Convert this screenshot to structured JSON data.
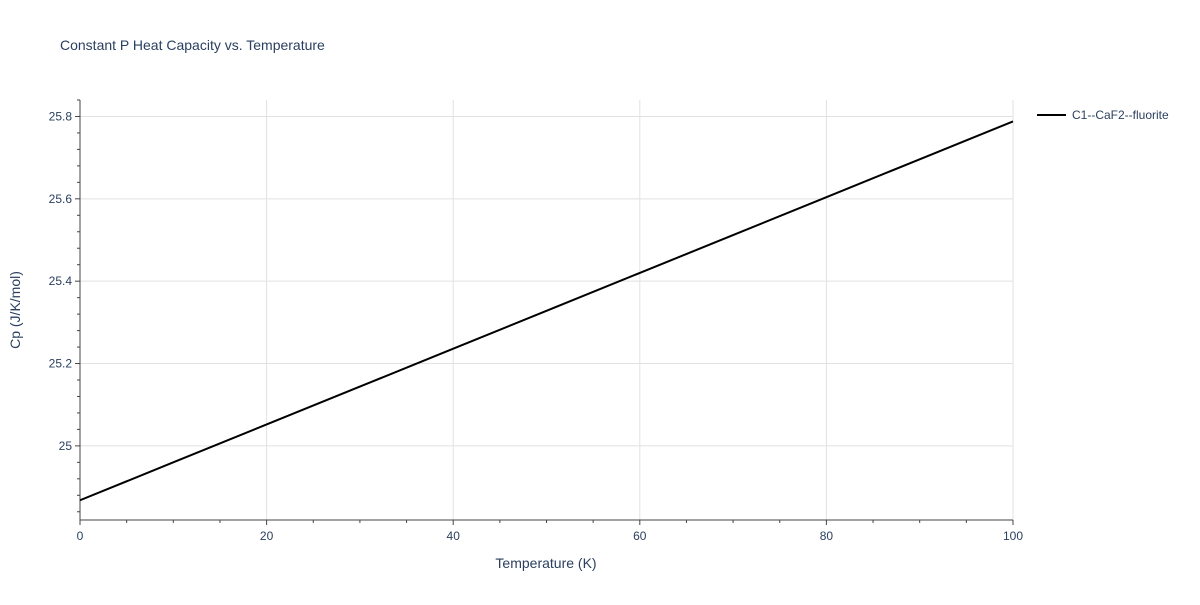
{
  "chart_data": {
    "type": "line",
    "title": "Constant P Heat Capacity vs. Temperature",
    "xlabel": "Temperature (K)",
    "ylabel": "Cp (J/K/mol)",
    "xlim": [
      0,
      100
    ],
    "ylim": [
      24.82,
      25.84
    ],
    "x_ticks": [
      0,
      20,
      40,
      60,
      80,
      100
    ],
    "x_tick_labels": [
      "0",
      "20",
      "40",
      "60",
      "80",
      "100"
    ],
    "y_ticks": [
      25.0,
      25.2,
      25.4,
      25.6,
      25.8
    ],
    "y_tick_labels": [
      "25",
      "25.2",
      "25.4",
      "25.6",
      "25.8"
    ],
    "grid": true,
    "legend_position": "top-right",
    "series": [
      {
        "name": "C1--CaF2--fluorite",
        "color": "#000000",
        "x": [
          0,
          10,
          20,
          30,
          40,
          50,
          60,
          70,
          80,
          90,
          100
        ],
        "y": [
          24.868,
          24.96,
          25.052,
          25.144,
          25.236,
          25.328,
          25.42,
          25.512,
          25.604,
          25.696,
          25.788
        ]
      }
    ]
  }
}
